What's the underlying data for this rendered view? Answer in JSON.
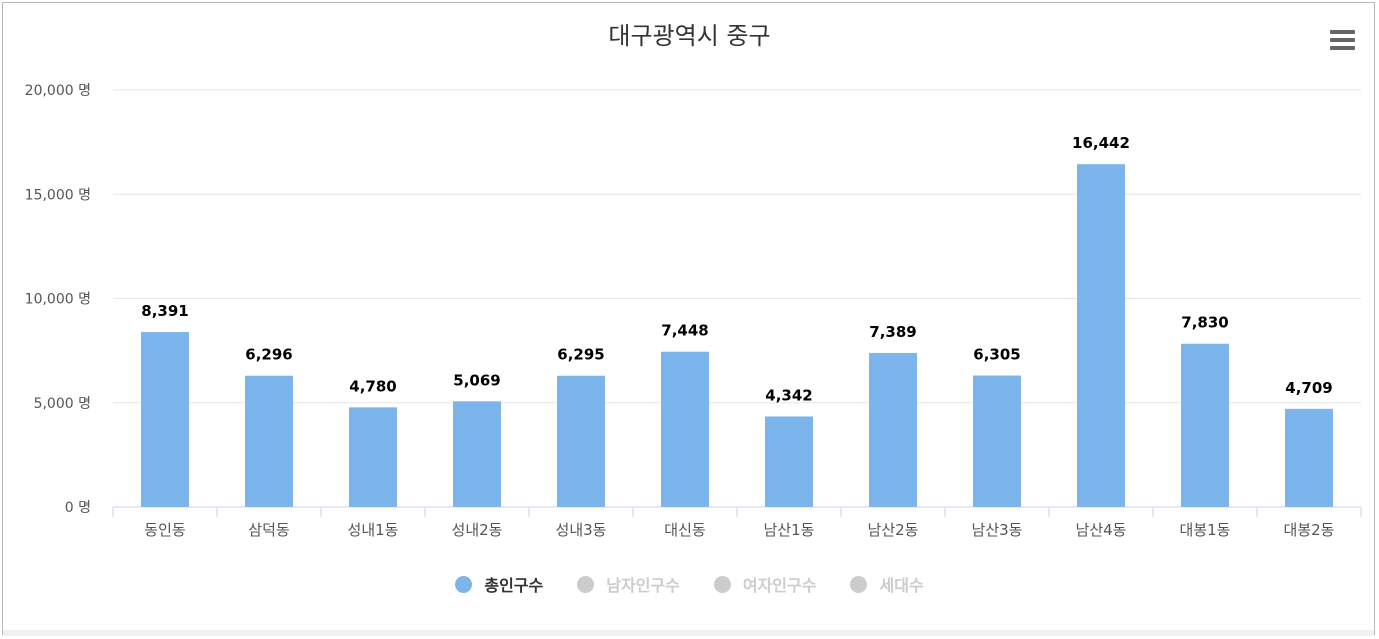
{
  "page": {
    "title": "대구광역시 중구"
  },
  "menu": {
    "icon": "hamburger-menu-icon"
  },
  "chart_data": {
    "type": "bar",
    "title": "대구광역시 중구",
    "categories": [
      "동인동",
      "삼덕동",
      "성내1동",
      "성내2동",
      "성내3동",
      "대신동",
      "남산1동",
      "남산2동",
      "남산3동",
      "남산4동",
      "대봉1동",
      "대봉2동"
    ],
    "series": [
      {
        "name": "총인구수",
        "values": [
          8391,
          6296,
          4780,
          5069,
          6295,
          7448,
          4342,
          7389,
          6305,
          16442,
          7830,
          4709
        ],
        "color": "#7cb5ec",
        "visible": true
      }
    ],
    "data_labels": [
      "8,391",
      "6,296",
      "4,780",
      "5,069",
      "6,295",
      "7,448",
      "4,342",
      "7,389",
      "6,305",
      "16,442",
      "7,830",
      "4,709"
    ],
    "y_ticks": [
      0,
      5000,
      10000,
      15000,
      20000
    ],
    "y_tick_labels": [
      "0 명",
      "5,000 명",
      "10,000 명",
      "15,000 명",
      "20,000 명"
    ],
    "ylim": [
      0,
      20000
    ],
    "grid": true,
    "legend_position": "bottom-center"
  },
  "legend": [
    {
      "label": "총인구수",
      "color": "#7cb5ec",
      "active": true
    },
    {
      "label": "남자인구수",
      "color": "#cccccc",
      "active": false
    },
    {
      "label": "여자인구수",
      "color": "#cccccc",
      "active": false
    },
    {
      "label": "세대수",
      "color": "#cccccc",
      "active": false
    }
  ]
}
